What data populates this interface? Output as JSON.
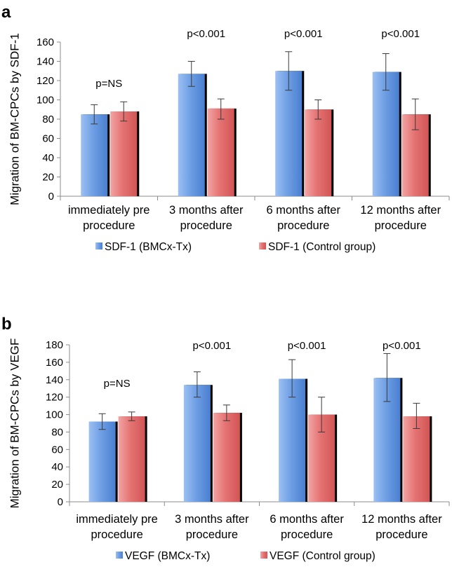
{
  "chart_data": [
    {
      "type": "bar",
      "panel_label": "a",
      "ylabel": "Migration of BM-CPCs by SDF-1",
      "ylim": [
        0,
        160
      ],
      "yticks": [
        0,
        20,
        40,
        60,
        80,
        100,
        120,
        140,
        160
      ],
      "categories": [
        [
          "immediately pre",
          "procedure"
        ],
        [
          "3 months after",
          "procedure"
        ],
        [
          "6 months after",
          "procedure"
        ],
        [
          "12 months after",
          "procedure"
        ]
      ],
      "series": [
        {
          "name": "SDF-1 (BMCx-Tx)",
          "color": "#5b8fd9",
          "values": [
            85,
            127,
            130,
            129
          ],
          "err_low": [
            75,
            114,
            110,
            110
          ],
          "err_high": [
            95,
            140,
            150,
            148
          ]
        },
        {
          "name": "SDF-1 (Control group)",
          "color": "#e06666",
          "values": [
            88,
            91,
            90,
            85
          ],
          "err_low": [
            78,
            80,
            80,
            69
          ],
          "err_high": [
            98,
            101,
            100,
            101
          ]
        }
      ],
      "annotations": [
        "p=NS",
        "p<0.001",
        "p<0.001",
        "p<0.001"
      ],
      "legend_position": "bottom",
      "grid": false
    },
    {
      "type": "bar",
      "panel_label": "b",
      "ylabel": "Migration of BM-CPCs by VEGF",
      "ylim": [
        0,
        180
      ],
      "yticks": [
        0,
        20,
        40,
        60,
        80,
        100,
        120,
        140,
        160,
        180
      ],
      "categories": [
        [
          "immediately pre",
          "procedure"
        ],
        [
          "3 months after",
          "procedure"
        ],
        [
          "6 months after",
          "procedure"
        ],
        [
          "12 months after",
          "procedure"
        ]
      ],
      "series": [
        {
          "name": "VEGF (BMCx-Tx)",
          "color": "#5b8fd9",
          "values": [
            92,
            134,
            141,
            142
          ],
          "err_low": [
            83,
            120,
            120,
            115
          ],
          "err_high": [
            101,
            149,
            163,
            170
          ]
        },
        {
          "name": "VEGF (Control group)",
          "color": "#e06666",
          "values": [
            98,
            102,
            100,
            98
          ],
          "err_low": [
            93,
            93,
            80,
            84
          ],
          "err_high": [
            103,
            111,
            120,
            113
          ]
        }
      ],
      "annotations": [
        "p=NS",
        "p<0.001",
        "p<0.001",
        "p<0.001"
      ],
      "legend_position": "bottom",
      "grid": false
    }
  ]
}
